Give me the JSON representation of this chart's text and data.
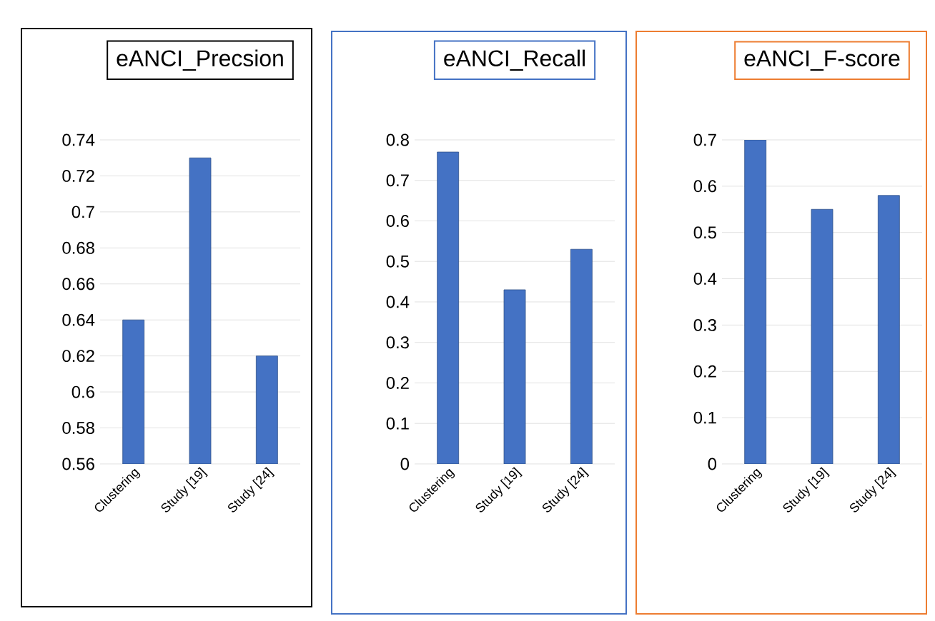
{
  "chart_data": [
    {
      "type": "bar",
      "title": "eANCI_Precsion",
      "categories": [
        "Clustering",
        "Study [19]",
        "Study [24]"
      ],
      "values": [
        0.64,
        0.73,
        0.62
      ],
      "color": "#4472c4",
      "ylim": [
        0.56,
        0.74
      ],
      "yticks": [
        0.56,
        0.58,
        0.6,
        0.62,
        0.64,
        0.66,
        0.68,
        0.7,
        0.72,
        0.74
      ],
      "grid": "y"
    },
    {
      "type": "bar",
      "title": "eANCI_Recall",
      "categories": [
        "Clustering",
        "Study [19]",
        "Study [24]"
      ],
      "values": [
        0.77,
        0.43,
        0.53
      ],
      "color": "#4472c4",
      "ylim": [
        0,
        0.8
      ],
      "yticks": [
        0,
        0.1,
        0.2,
        0.3,
        0.4,
        0.5,
        0.6,
        0.7,
        0.8
      ],
      "grid": "y"
    },
    {
      "type": "bar",
      "title": "eANCI_F-score",
      "categories": [
        "Clustering",
        "Study [19]",
        "Study [24]"
      ],
      "values": [
        0.7,
        0.55,
        0.58
      ],
      "color": "#4472c4",
      "ylim": [
        0,
        0.7
      ],
      "yticks": [
        0,
        0.1,
        0.2,
        0.3,
        0.4,
        0.5,
        0.6,
        0.7
      ],
      "grid": "y"
    }
  ]
}
